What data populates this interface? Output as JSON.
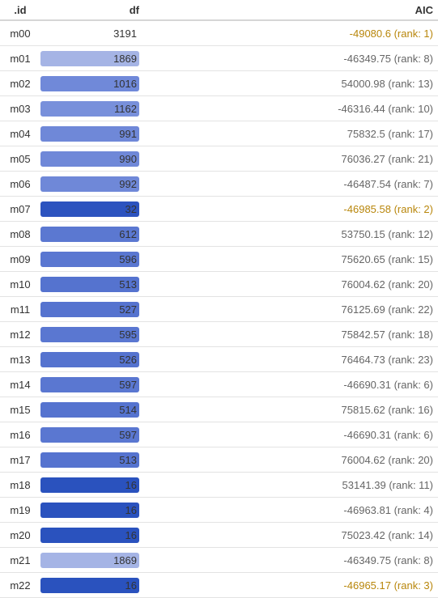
{
  "table": {
    "header": [
      ".id",
      "df",
      "AIC"
    ],
    "rows": [
      {
        "id": "m00",
        "df": 3191,
        "aic": "-49080.6 (rank: 1)",
        "aic_color": "#b8860b"
      },
      {
        "id": "m01",
        "df": 1869,
        "aic": "-46349.75 (rank: 8)",
        "aic_color": "#666666",
        "bar_color": "#a5b4e5"
      },
      {
        "id": "m02",
        "df": 1016,
        "aic": "54000.98 (rank: 13)",
        "aic_color": "#666666",
        "bar_color": "#7089d9"
      },
      {
        "id": "m03",
        "df": 1162,
        "aic": "-46316.44 (rank: 10)",
        "aic_color": "#666666",
        "bar_color": "#7890db"
      },
      {
        "id": "m04",
        "df": 991,
        "aic": "75832.5 (rank: 17)",
        "aic_color": "#666666",
        "bar_color": "#6f88d8"
      },
      {
        "id": "m05",
        "df": 990,
        "aic": "76036.27 (rank: 21)",
        "aic_color": "#666666",
        "bar_color": "#6f88d8"
      },
      {
        "id": "m06",
        "df": 992,
        "aic": "-46487.54 (rank: 7)",
        "aic_color": "#666666",
        "bar_color": "#6f88d8"
      },
      {
        "id": "m07",
        "df": 32,
        "aic": "-46985.58 (rank: 2)",
        "aic_color": "#b8860b",
        "bar_color": "#2c53bf"
      },
      {
        "id": "m08",
        "df": 612,
        "aic": "53750.15 (rank: 12)",
        "aic_color": "#666666",
        "bar_color": "#5b78d1"
      },
      {
        "id": "m09",
        "df": 596,
        "aic": "75620.65 (rank: 15)",
        "aic_color": "#666666",
        "bar_color": "#5a77d1"
      },
      {
        "id": "m10",
        "df": 513,
        "aic": "76004.62 (rank: 20)",
        "aic_color": "#666666",
        "bar_color": "#5573cf"
      },
      {
        "id": "m11",
        "df": 527,
        "aic": "76125.69 (rank: 22)",
        "aic_color": "#666666",
        "bar_color": "#5573cf"
      },
      {
        "id": "m12",
        "df": 595,
        "aic": "75842.57 (rank: 18)",
        "aic_color": "#666666",
        "bar_color": "#5a77d1"
      },
      {
        "id": "m13",
        "df": 526,
        "aic": "76464.73 (rank: 23)",
        "aic_color": "#666666",
        "bar_color": "#5573cf"
      },
      {
        "id": "m14",
        "df": 597,
        "aic": "-46690.31 (rank: 6)",
        "aic_color": "#666666",
        "bar_color": "#5a77d1"
      },
      {
        "id": "m15",
        "df": 514,
        "aic": "75815.62 (rank: 16)",
        "aic_color": "#666666",
        "bar_color": "#5573cf"
      },
      {
        "id": "m16",
        "df": 597,
        "aic": "-46690.31 (rank: 6)",
        "aic_color": "#666666",
        "bar_color": "#5a77d1"
      },
      {
        "id": "m17",
        "df": 513,
        "aic": "76004.62 (rank: 20)",
        "aic_color": "#666666",
        "bar_color": "#5573cf"
      },
      {
        "id": "m18",
        "df": 16,
        "aic": "53141.39 (rank: 11)",
        "aic_color": "#666666",
        "bar_color": "#2a52be"
      },
      {
        "id": "m19",
        "df": 16,
        "aic": "-46963.81 (rank: 4)",
        "aic_color": "#666666",
        "bar_color": "#2a52be"
      },
      {
        "id": "m20",
        "df": 16,
        "aic": "75023.42 (rank: 14)",
        "aic_color": "#666666",
        "bar_color": "#2a52be"
      },
      {
        "id": "m21",
        "df": 1869,
        "aic": "-46349.75 (rank: 8)",
        "aic_color": "#666666",
        "bar_color": "#a5b4e5"
      },
      {
        "id": "m22",
        "df": 16,
        "aic": "-46965.17 (rank: 3)",
        "aic_color": "#b8860b",
        "bar_color": "#2a52be"
      }
    ]
  }
}
